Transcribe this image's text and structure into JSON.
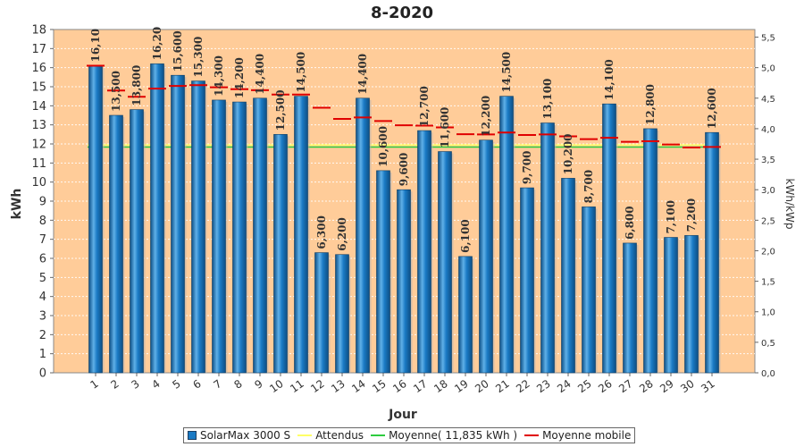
{
  "chart_data": {
    "type": "bar",
    "title": "8-2020",
    "xlabel": "Jour",
    "ylabel": "kWh",
    "ylabel_right": "kWh/kWp",
    "categories": [
      "1",
      "2",
      "3",
      "4",
      "5",
      "6",
      "7",
      "8",
      "9",
      "10",
      "11",
      "12",
      "13",
      "14",
      "15",
      "16",
      "17",
      "18",
      "19",
      "20",
      "21",
      "22",
      "23",
      "24",
      "25",
      "26",
      "27",
      "28",
      "29",
      "30",
      "31"
    ],
    "series": [
      {
        "name": "SolarMax 3000 S",
        "values": [
          16.1,
          13.5,
          13.8,
          16.2,
          15.6,
          15.3,
          14.3,
          14.2,
          14.4,
          12.5,
          14.5,
          6.3,
          6.2,
          14.4,
          10.6,
          9.6,
          12.7,
          11.6,
          6.1,
          12.2,
          14.5,
          9.7,
          13.1,
          10.2,
          8.7,
          14.1,
          6.8,
          12.8,
          7.1,
          7.2,
          12.6
        ],
        "labels": [
          "16,10",
          "13,500",
          "13,800",
          "16,20",
          "15,600",
          "15,300",
          "14,300",
          "14,200",
          "14,400",
          "12,500",
          "14,500",
          "6,300",
          "6,200",
          "14,400",
          "10,600",
          "9,600",
          "12,700",
          "11,600",
          "6,100",
          "12,200",
          "14,500",
          "9,700",
          "13,100",
          "10,200",
          "8,700",
          "14,100",
          "6,800",
          "12,800",
          "7,100",
          "7,200",
          "12,600"
        ]
      },
      {
        "name": "Moyenne mobile",
        "values": [
          16.1,
          14.8,
          14.47,
          14.9,
          15.04,
          15.08,
          14.97,
          14.87,
          14.82,
          14.59,
          14.59,
          13.9,
          13.31,
          13.39,
          13.2,
          12.98,
          12.96,
          12.87,
          12.51,
          12.5,
          12.6,
          12.47,
          12.5,
          12.4,
          12.25,
          12.32,
          12.11,
          12.14,
          11.97,
          11.81,
          11.84
        ]
      }
    ],
    "moyenne": {
      "name": "Moyenne( 11,835 kWh )",
      "value": 11.835
    },
    "attendus": {
      "name": "Attendus",
      "value": 11.95
    },
    "ylim": [
      0,
      18
    ],
    "yticks": [
      "0",
      "1",
      "2",
      "3",
      "4",
      "5",
      "6",
      "7",
      "8",
      "9",
      "10",
      "11",
      "12",
      "13",
      "14",
      "15",
      "16",
      "17",
      "18"
    ],
    "ylim_right": [
      0,
      5.625
    ],
    "yticks_right": [
      "0,0",
      "0,5",
      "1,0",
      "1,5",
      "2,0",
      "2,5",
      "3,0",
      "3,5",
      "4,0",
      "4,5",
      "5,0",
      "5,5"
    ],
    "grid": true,
    "legend_position": "bottom",
    "colors": {
      "plot_bg": "#ffcc99",
      "bar": "#1a7ac4",
      "bar_dark": "#0d4f85",
      "bar_light": "#5fb0e8",
      "attendus": "#ffff66",
      "moyenne": "#2ecc40",
      "moyenne_mobile": "#e00000",
      "label": "#333333"
    }
  }
}
